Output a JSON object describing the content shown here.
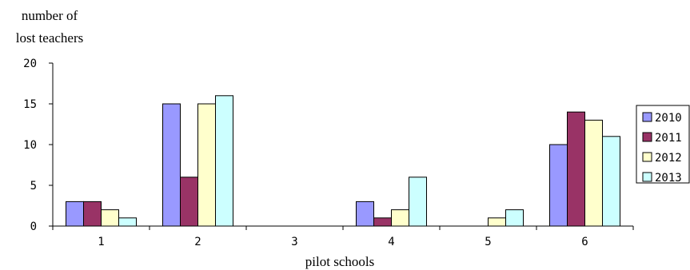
{
  "chart_data": {
    "type": "bar",
    "ylabel_lines": [
      "number of",
      "lost teachers"
    ],
    "xlabel": "pilot schools",
    "categories": [
      "1",
      "2",
      "3",
      "4",
      "5",
      "6"
    ],
    "ylim": [
      0,
      20
    ],
    "yticks": [
      "0",
      "5",
      "10",
      "15",
      "20"
    ],
    "grid": false,
    "legend_position": "right",
    "series": [
      {
        "name": "2010",
        "color": "#9999ff",
        "values": [
          3,
          15,
          0,
          3,
          0,
          10
        ]
      },
      {
        "name": "2011",
        "color": "#993366",
        "values": [
          3,
          6,
          0,
          1,
          0,
          14
        ]
      },
      {
        "name": "2012",
        "color": "#ffffcc",
        "values": [
          2,
          15,
          0,
          2,
          1,
          13
        ]
      },
      {
        "name": "2013",
        "color": "#ccffff",
        "values": [
          1,
          16,
          0,
          6,
          2,
          11
        ]
      }
    ]
  }
}
